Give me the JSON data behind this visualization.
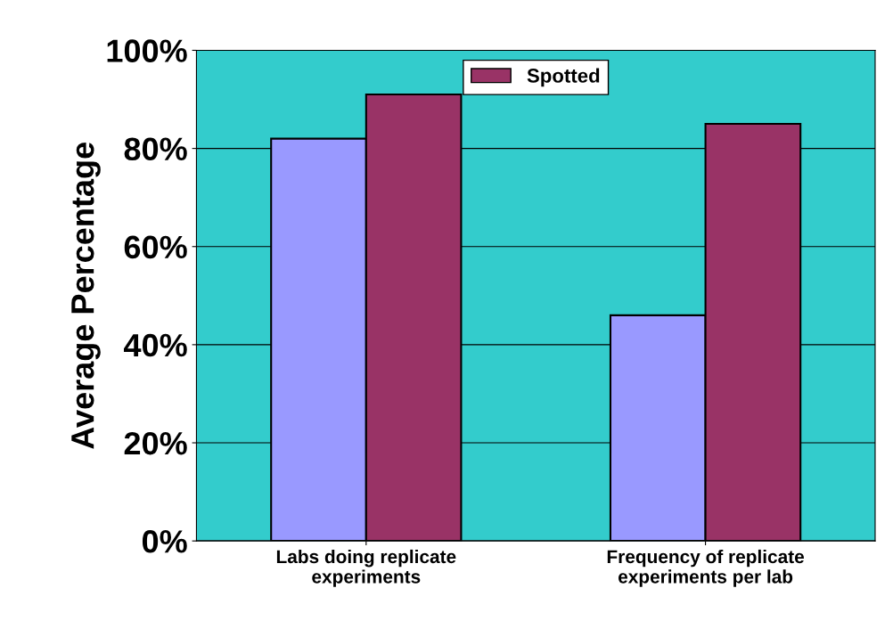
{
  "chart_data": {
    "type": "bar",
    "ylabel": "Average Percentage",
    "categories": [
      "Labs doing replicate\nexperiments",
      "Frequency of replicate\nexperiments per lab"
    ],
    "series": [
      {
        "color": "#9999ff",
        "values": [
          82,
          46
        ]
      },
      {
        "name": "Spotted",
        "color": "#993366",
        "values": [
          91,
          85
        ]
      }
    ],
    "ylim": [
      0,
      100
    ],
    "yticks": [
      {
        "value": 0,
        "label": "0%"
      },
      {
        "value": 20,
        "label": "20%"
      },
      {
        "value": 40,
        "label": "40%"
      },
      {
        "value": 60,
        "label": "60%"
      },
      {
        "value": 80,
        "label": "80%"
      },
      {
        "value": 100,
        "label": "100%"
      }
    ],
    "grid": "y",
    "legend": "top"
  }
}
